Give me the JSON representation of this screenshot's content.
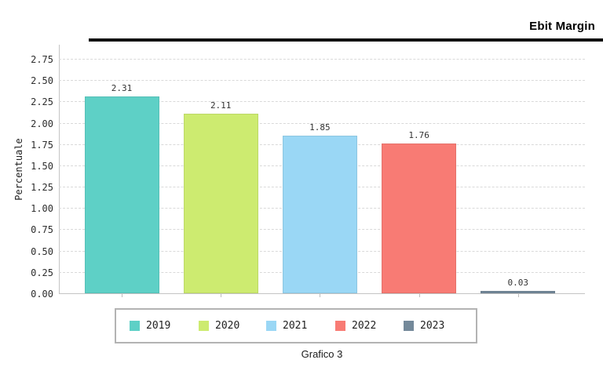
{
  "header": {
    "title": "Ebit Margin"
  },
  "caption": "Grafico 3",
  "chart_data": {
    "type": "bar",
    "title": "Ebit Margin",
    "xlabel": "",
    "ylabel": "Percentuale",
    "categories": [
      "2019",
      "2020",
      "2021",
      "2022",
      "2023"
    ],
    "values": [
      2.31,
      2.11,
      1.85,
      1.76,
      0.03
    ],
    "value_labels": [
      "2.31",
      "2.11",
      "1.85",
      "1.76",
      "0.03"
    ],
    "bar_colors": [
      "#5ED0C6",
      "#CDEB70",
      "#9AD7F5",
      "#F87B74",
      "#74899A"
    ],
    "ylim": [
      0,
      2.75
    ],
    "ytick_step": 0.25,
    "ytick_labels": [
      "0.00",
      "0.25",
      "0.50",
      "0.75",
      "1.00",
      "1.25",
      "1.50",
      "1.75",
      "2.00",
      "2.25",
      "2.50",
      "2.75"
    ],
    "grid": "horizontal-dashed",
    "grid_color": "#d9d9d9",
    "legend_position": "bottom",
    "legend_entries": [
      {
        "label": "2019",
        "color": "#5ED0C6"
      },
      {
        "label": "2020",
        "color": "#CDEB70"
      },
      {
        "label": "2021",
        "color": "#9AD7F5"
      },
      {
        "label": "2022",
        "color": "#F87B74"
      },
      {
        "label": "2023",
        "color": "#74899A"
      }
    ]
  }
}
